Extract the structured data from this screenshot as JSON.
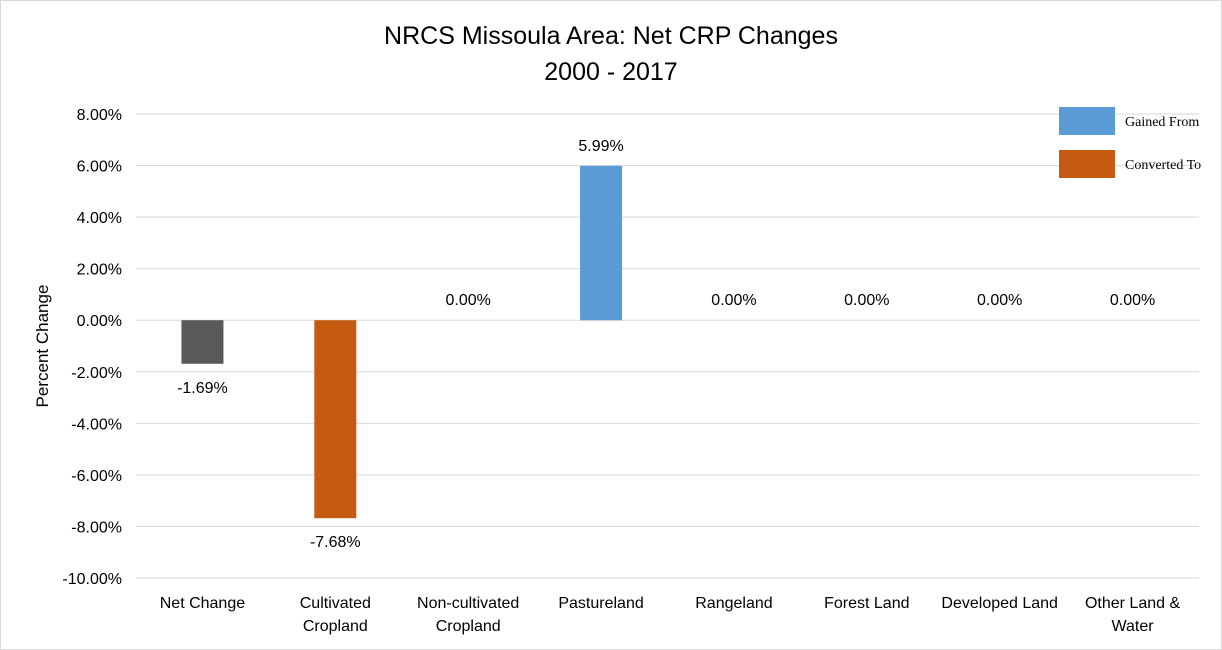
{
  "chart_data": {
    "type": "bar",
    "title_line1": "NRCS Missoula Area: Net CRP Changes",
    "title_line2": "2000 - 2017",
    "xlabel": "",
    "ylabel": "Percent Change",
    "ylim": [
      -10,
      8
    ],
    "y_ticks": [
      8,
      6,
      4,
      2,
      0,
      -2,
      -4,
      -6,
      -8,
      -10
    ],
    "y_tick_labels": [
      "8.00%",
      "6.00%",
      "4.00%",
      "2.00%",
      "0.00%",
      "-2.00%",
      "-4.00%",
      "-6.00%",
      "-8.00%",
      "-10.00%"
    ],
    "grid": true,
    "legend_position": "top-right",
    "legend": [
      {
        "label": "Gained From",
        "color": "#5b9bd5"
      },
      {
        "label": "Converted To",
        "color": "#c55a11"
      }
    ],
    "categories": [
      [
        "Net Change"
      ],
      [
        "Cultivated",
        "Cropland"
      ],
      [
        "Non-cultivated",
        "Cropland"
      ],
      [
        "Pastureland"
      ],
      [
        "Rangeland"
      ],
      [
        "Forest Land"
      ],
      [
        "Developed Land"
      ],
      [
        "Other Land &",
        "Water"
      ]
    ],
    "values": [
      -1.69,
      -7.68,
      0.0,
      5.99,
      0.0,
      0.0,
      0.0,
      0.0
    ],
    "data_labels": [
      "-1.69%",
      "-7.68%",
      "0.00%",
      "5.99%",
      "0.00%",
      "0.00%",
      "0.00%",
      "0.00%"
    ],
    "bar_colors": [
      "#595959",
      "#c55a11",
      "#5b9bd5",
      "#5b9bd5",
      "#5b9bd5",
      "#5b9bd5",
      "#5b9bd5",
      "#5b9bd5"
    ]
  }
}
